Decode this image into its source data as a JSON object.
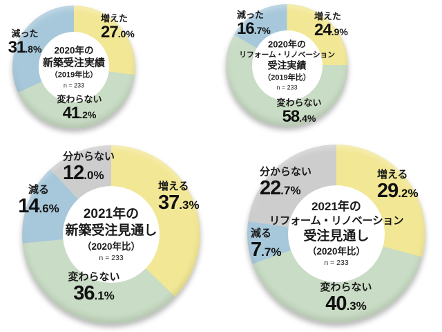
{
  "page": {
    "background": "#ffffff",
    "text_color": "#1a1a1a"
  },
  "palette": {
    "increase": "#F2E794",
    "unchanged": "#C9DCC5",
    "decrease": "#A7C8DB",
    "unknown": "#CDCDCD"
  },
  "chart_data": [
    {
      "type": "pie",
      "variant": "donut",
      "id": "new-construction-2020-results",
      "title_lines": [
        "2020年の",
        "新築受注実績"
      ],
      "subtitle": "（2019年比）",
      "sample_label": "n = 233",
      "start_angle_deg": 0,
      "direction": "clockwise",
      "segments": [
        {
          "label": "増えた",
          "value": 27.0,
          "color_key": "increase"
        },
        {
          "label": "変わらない",
          "value": 41.2,
          "color_key": "unchanged"
        },
        {
          "label": "減った",
          "value": 31.8,
          "color_key": "decrease"
        }
      ]
    },
    {
      "type": "pie",
      "variant": "donut",
      "id": "reform-renovation-2020-results",
      "title_lines": [
        "2020年の",
        "リフォーム・リノベーション",
        "受注実績"
      ],
      "subtitle": "（2019年比）",
      "sample_label": "n = 233",
      "start_angle_deg": 0,
      "direction": "clockwise",
      "segments": [
        {
          "label": "増えた",
          "value": 24.9,
          "color_key": "increase"
        },
        {
          "label": "変わらない",
          "value": 58.4,
          "color_key": "unchanged"
        },
        {
          "label": "減った",
          "value": 16.7,
          "color_key": "decrease"
        }
      ]
    },
    {
      "type": "pie",
      "variant": "donut",
      "id": "new-construction-2021-outlook",
      "title_lines": [
        "2021年の",
        "新築受注見通し"
      ],
      "subtitle": "（2020年比）",
      "sample_label": "n = 233",
      "start_angle_deg": 0,
      "direction": "clockwise",
      "segments": [
        {
          "label": "増える",
          "value": 37.3,
          "color_key": "increase"
        },
        {
          "label": "変わらない",
          "value": 36.1,
          "color_key": "unchanged"
        },
        {
          "label": "減る",
          "value": 14.6,
          "color_key": "decrease"
        },
        {
          "label": "分からない",
          "value": 12.0,
          "color_key": "unknown"
        }
      ]
    },
    {
      "type": "pie",
      "variant": "donut",
      "id": "reform-renovation-2021-outlook",
      "title_lines": [
        "2021年の",
        "リフォーム・リノベーション",
        "受注見通し"
      ],
      "subtitle": "（2020年比）",
      "sample_label": "n = 233",
      "start_angle_deg": 0,
      "direction": "clockwise",
      "segments": [
        {
          "label": "増える",
          "value": 29.2,
          "color_key": "increase"
        },
        {
          "label": "変わらない",
          "value": 40.3,
          "color_key": "unchanged"
        },
        {
          "label": "減る",
          "value": 7.7,
          "color_key": "decrease"
        },
        {
          "label": "分からない",
          "value": 22.7,
          "color_key": "unknown"
        }
      ]
    }
  ]
}
